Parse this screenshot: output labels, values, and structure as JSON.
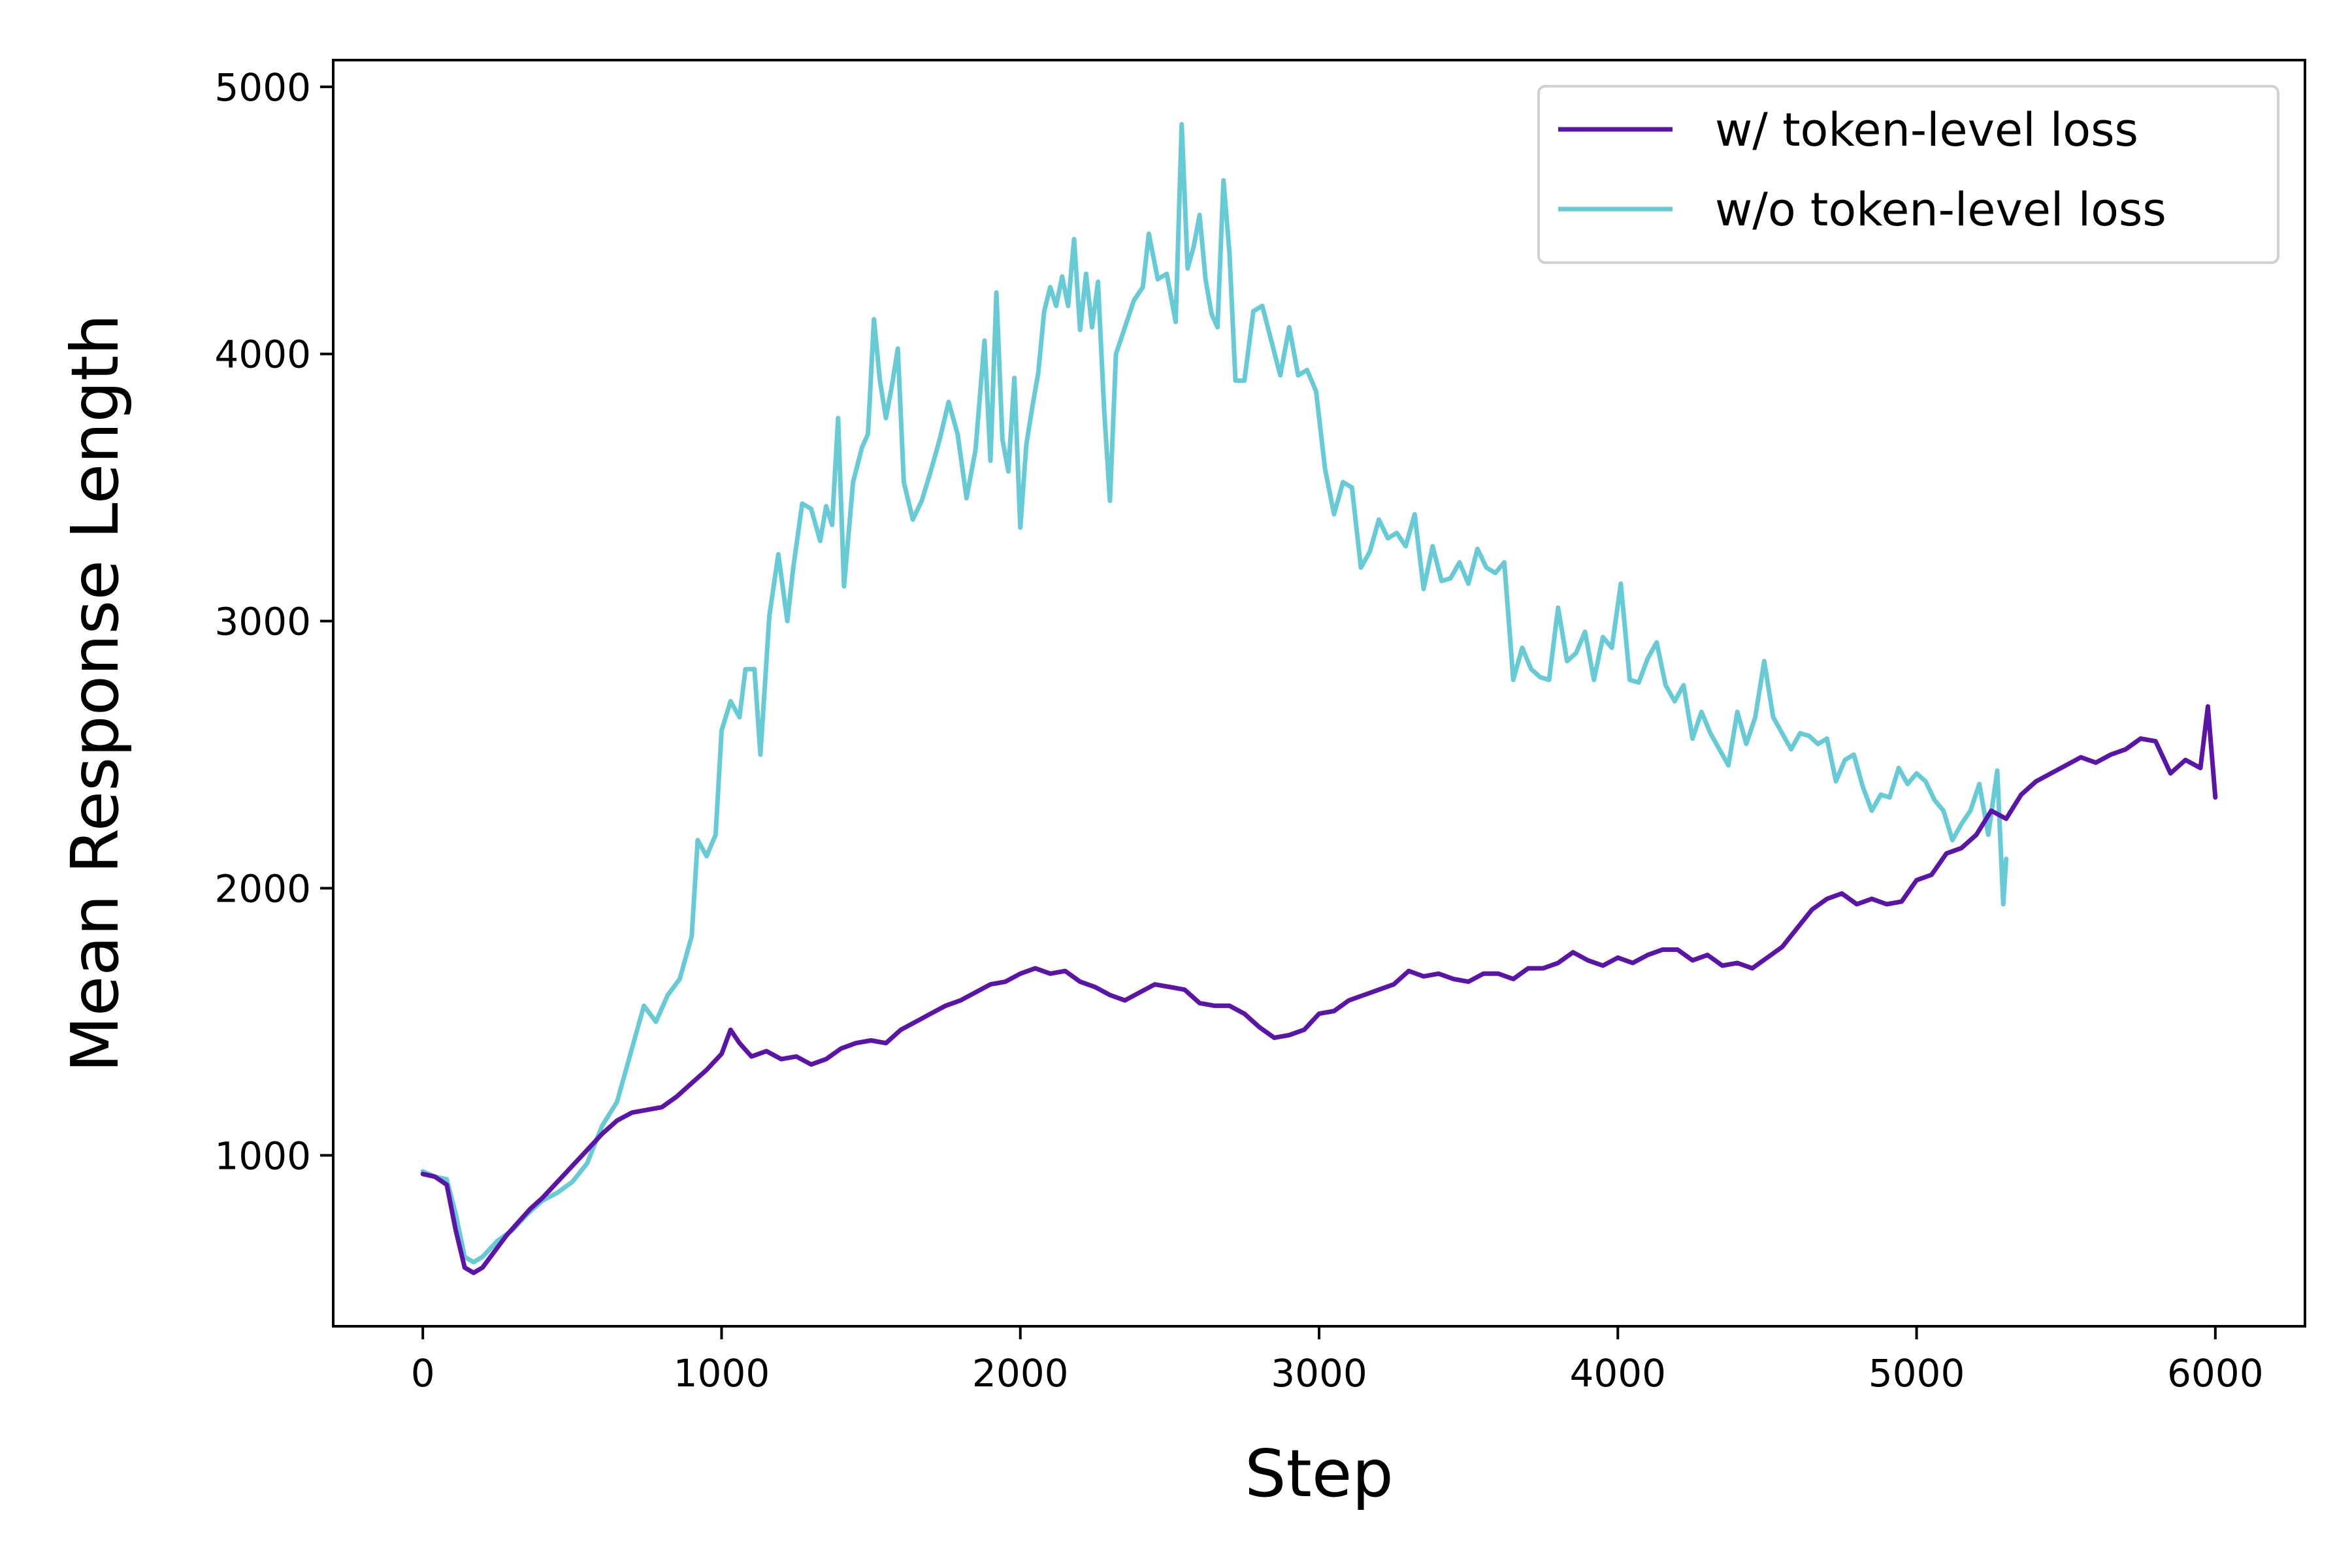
{
  "chart_data": {
    "type": "line",
    "title": "",
    "xlabel": "Step",
    "ylabel": "Mean Response Length",
    "xlim": [
      -300,
      6300
    ],
    "ylim": [
      360,
      5100
    ],
    "xticks": [
      0,
      1000,
      2000,
      3000,
      4000,
      5000,
      6000
    ],
    "yticks": [
      1000,
      2000,
      3000,
      4000,
      5000
    ],
    "grid": false,
    "legend_position": "upper-right",
    "series": [
      {
        "name": "w/ token-level loss",
        "color": "#5b14a8",
        "points": [
          [
            0,
            930
          ],
          [
            40,
            920
          ],
          [
            80,
            890
          ],
          [
            110,
            720
          ],
          [
            140,
            580
          ],
          [
            170,
            560
          ],
          [
            200,
            580
          ],
          [
            240,
            640
          ],
          [
            280,
            700
          ],
          [
            320,
            750
          ],
          [
            360,
            800
          ],
          [
            400,
            840
          ],
          [
            450,
            900
          ],
          [
            500,
            960
          ],
          [
            550,
            1020
          ],
          [
            600,
            1080
          ],
          [
            650,
            1130
          ],
          [
            700,
            1160
          ],
          [
            750,
            1170
          ],
          [
            800,
            1180
          ],
          [
            850,
            1220
          ],
          [
            900,
            1270
          ],
          [
            950,
            1320
          ],
          [
            1000,
            1380
          ],
          [
            1030,
            1470
          ],
          [
            1060,
            1420
          ],
          [
            1100,
            1370
          ],
          [
            1150,
            1390
          ],
          [
            1200,
            1360
          ],
          [
            1250,
            1370
          ],
          [
            1300,
            1340
          ],
          [
            1350,
            1360
          ],
          [
            1400,
            1400
          ],
          [
            1450,
            1420
          ],
          [
            1500,
            1430
          ],
          [
            1550,
            1420
          ],
          [
            1600,
            1470
          ],
          [
            1650,
            1500
          ],
          [
            1700,
            1530
          ],
          [
            1750,
            1560
          ],
          [
            1800,
            1580
          ],
          [
            1850,
            1610
          ],
          [
            1900,
            1640
          ],
          [
            1950,
            1650
          ],
          [
            2000,
            1680
          ],
          [
            2050,
            1700
          ],
          [
            2100,
            1680
          ],
          [
            2150,
            1690
          ],
          [
            2200,
            1650
          ],
          [
            2250,
            1630
          ],
          [
            2300,
            1600
          ],
          [
            2350,
            1580
          ],
          [
            2400,
            1610
          ],
          [
            2450,
            1640
          ],
          [
            2500,
            1630
          ],
          [
            2550,
            1620
          ],
          [
            2600,
            1570
          ],
          [
            2650,
            1560
          ],
          [
            2700,
            1560
          ],
          [
            2750,
            1530
          ],
          [
            2800,
            1480
          ],
          [
            2850,
            1440
          ],
          [
            2900,
            1450
          ],
          [
            2950,
            1470
          ],
          [
            3000,
            1530
          ],
          [
            3050,
            1540
          ],
          [
            3100,
            1580
          ],
          [
            3150,
            1600
          ],
          [
            3200,
            1620
          ],
          [
            3250,
            1640
          ],
          [
            3300,
            1690
          ],
          [
            3350,
            1670
          ],
          [
            3400,
            1680
          ],
          [
            3450,
            1660
          ],
          [
            3500,
            1650
          ],
          [
            3550,
            1680
          ],
          [
            3600,
            1680
          ],
          [
            3650,
            1660
          ],
          [
            3700,
            1700
          ],
          [
            3750,
            1700
          ],
          [
            3800,
            1720
          ],
          [
            3850,
            1760
          ],
          [
            3900,
            1730
          ],
          [
            3950,
            1710
          ],
          [
            4000,
            1740
          ],
          [
            4050,
            1720
          ],
          [
            4100,
            1750
          ],
          [
            4150,
            1770
          ],
          [
            4200,
            1770
          ],
          [
            4250,
            1730
          ],
          [
            4300,
            1750
          ],
          [
            4350,
            1710
          ],
          [
            4400,
            1720
          ],
          [
            4450,
            1700
          ],
          [
            4500,
            1740
          ],
          [
            4550,
            1780
          ],
          [
            4600,
            1850
          ],
          [
            4650,
            1920
          ],
          [
            4700,
            1960
          ],
          [
            4750,
            1980
          ],
          [
            4800,
            1940
          ],
          [
            4850,
            1960
          ],
          [
            4900,
            1940
          ],
          [
            4950,
            1950
          ],
          [
            5000,
            2030
          ],
          [
            5050,
            2050
          ],
          [
            5100,
            2130
          ],
          [
            5150,
            2150
          ],
          [
            5200,
            2200
          ],
          [
            5250,
            2290
          ],
          [
            5300,
            2260
          ],
          [
            5350,
            2350
          ],
          [
            5400,
            2400
          ],
          [
            5450,
            2430
          ],
          [
            5500,
            2460
          ],
          [
            5550,
            2490
          ],
          [
            5600,
            2470
          ],
          [
            5650,
            2500
          ],
          [
            5700,
            2520
          ],
          [
            5750,
            2560
          ],
          [
            5800,
            2550
          ],
          [
            5850,
            2430
          ],
          [
            5900,
            2480
          ],
          [
            5950,
            2450
          ],
          [
            5975,
            2680
          ],
          [
            6000,
            2340
          ]
        ]
      },
      {
        "name": "w/o token-level loss",
        "color": "#66cbd4",
        "points": [
          [
            0,
            940
          ],
          [
            40,
            920
          ],
          [
            80,
            910
          ],
          [
            110,
            780
          ],
          [
            140,
            620
          ],
          [
            170,
            600
          ],
          [
            200,
            620
          ],
          [
            250,
            680
          ],
          [
            300,
            720
          ],
          [
            350,
            780
          ],
          [
            400,
            830
          ],
          [
            450,
            860
          ],
          [
            500,
            900
          ],
          [
            550,
            970
          ],
          [
            600,
            1110
          ],
          [
            650,
            1200
          ],
          [
            700,
            1400
          ],
          [
            740,
            1560
          ],
          [
            780,
            1500
          ],
          [
            820,
            1600
          ],
          [
            860,
            1660
          ],
          [
            900,
            1820
          ],
          [
            920,
            2180
          ],
          [
            950,
            2120
          ],
          [
            980,
            2200
          ],
          [
            1000,
            2590
          ],
          [
            1030,
            2700
          ],
          [
            1060,
            2640
          ],
          [
            1080,
            2820
          ],
          [
            1110,
            2820
          ],
          [
            1130,
            2500
          ],
          [
            1160,
            3020
          ],
          [
            1190,
            3250
          ],
          [
            1220,
            3000
          ],
          [
            1240,
            3200
          ],
          [
            1270,
            3440
          ],
          [
            1300,
            3420
          ],
          [
            1330,
            3300
          ],
          [
            1350,
            3430
          ],
          [
            1370,
            3360
          ],
          [
            1390,
            3760
          ],
          [
            1410,
            3130
          ],
          [
            1440,
            3520
          ],
          [
            1470,
            3650
          ],
          [
            1490,
            3700
          ],
          [
            1510,
            4130
          ],
          [
            1530,
            3900
          ],
          [
            1550,
            3760
          ],
          [
            1570,
            3880
          ],
          [
            1590,
            4020
          ],
          [
            1610,
            3520
          ],
          [
            1640,
            3380
          ],
          [
            1670,
            3450
          ],
          [
            1700,
            3560
          ],
          [
            1730,
            3680
          ],
          [
            1760,
            3820
          ],
          [
            1790,
            3700
          ],
          [
            1820,
            3460
          ],
          [
            1850,
            3640
          ],
          [
            1880,
            4050
          ],
          [
            1900,
            3600
          ],
          [
            1920,
            4230
          ],
          [
            1940,
            3680
          ],
          [
            1960,
            3560
          ],
          [
            1980,
            3910
          ],
          [
            2000,
            3350
          ],
          [
            2020,
            3660
          ],
          [
            2040,
            3800
          ],
          [
            2060,
            3930
          ],
          [
            2080,
            4160
          ],
          [
            2100,
            4250
          ],
          [
            2120,
            4180
          ],
          [
            2140,
            4290
          ],
          [
            2160,
            4180
          ],
          [
            2180,
            4430
          ],
          [
            2200,
            4090
          ],
          [
            2220,
            4300
          ],
          [
            2240,
            4100
          ],
          [
            2260,
            4270
          ],
          [
            2280,
            3800
          ],
          [
            2300,
            3450
          ],
          [
            2320,
            4000
          ],
          [
            2350,
            4100
          ],
          [
            2380,
            4200
          ],
          [
            2410,
            4250
          ],
          [
            2430,
            4450
          ],
          [
            2460,
            4280
          ],
          [
            2490,
            4300
          ],
          [
            2520,
            4120
          ],
          [
            2540,
            4860
          ],
          [
            2560,
            4320
          ],
          [
            2580,
            4400
          ],
          [
            2600,
            4520
          ],
          [
            2620,
            4280
          ],
          [
            2640,
            4150
          ],
          [
            2660,
            4100
          ],
          [
            2680,
            4650
          ],
          [
            2700,
            4380
          ],
          [
            2720,
            3900
          ],
          [
            2750,
            3900
          ],
          [
            2780,
            4160
          ],
          [
            2810,
            4180
          ],
          [
            2840,
            4050
          ],
          [
            2870,
            3920
          ],
          [
            2900,
            4100
          ],
          [
            2930,
            3920
          ],
          [
            2960,
            3940
          ],
          [
            2990,
            3860
          ],
          [
            3020,
            3570
          ],
          [
            3050,
            3400
          ],
          [
            3080,
            3520
          ],
          [
            3110,
            3500
          ],
          [
            3140,
            3200
          ],
          [
            3170,
            3260
          ],
          [
            3200,
            3380
          ],
          [
            3230,
            3310
          ],
          [
            3260,
            3330
          ],
          [
            3290,
            3280
          ],
          [
            3320,
            3400
          ],
          [
            3350,
            3120
          ],
          [
            3380,
            3280
          ],
          [
            3410,
            3150
          ],
          [
            3440,
            3160
          ],
          [
            3470,
            3220
          ],
          [
            3500,
            3140
          ],
          [
            3530,
            3270
          ],
          [
            3560,
            3200
          ],
          [
            3590,
            3180
          ],
          [
            3620,
            3220
          ],
          [
            3650,
            2780
          ],
          [
            3680,
            2900
          ],
          [
            3710,
            2820
          ],
          [
            3740,
            2790
          ],
          [
            3770,
            2780
          ],
          [
            3800,
            3050
          ],
          [
            3830,
            2850
          ],
          [
            3860,
            2880
          ],
          [
            3890,
            2960
          ],
          [
            3920,
            2780
          ],
          [
            3950,
            2940
          ],
          [
            3980,
            2900
          ],
          [
            4010,
            3140
          ],
          [
            4040,
            2780
          ],
          [
            4070,
            2770
          ],
          [
            4100,
            2860
          ],
          [
            4130,
            2920
          ],
          [
            4160,
            2760
          ],
          [
            4190,
            2700
          ],
          [
            4220,
            2760
          ],
          [
            4250,
            2560
          ],
          [
            4280,
            2660
          ],
          [
            4310,
            2580
          ],
          [
            4340,
            2520
          ],
          [
            4370,
            2460
          ],
          [
            4400,
            2660
          ],
          [
            4430,
            2540
          ],
          [
            4460,
            2640
          ],
          [
            4490,
            2850
          ],
          [
            4520,
            2640
          ],
          [
            4550,
            2580
          ],
          [
            4580,
            2520
          ],
          [
            4610,
            2580
          ],
          [
            4640,
            2570
          ],
          [
            4670,
            2540
          ],
          [
            4700,
            2560
          ],
          [
            4730,
            2400
          ],
          [
            4760,
            2480
          ],
          [
            4790,
            2500
          ],
          [
            4820,
            2380
          ],
          [
            4850,
            2290
          ],
          [
            4880,
            2350
          ],
          [
            4910,
            2340
          ],
          [
            4940,
            2450
          ],
          [
            4970,
            2390
          ],
          [
            5000,
            2430
          ],
          [
            5030,
            2400
          ],
          [
            5060,
            2330
          ],
          [
            5090,
            2290
          ],
          [
            5120,
            2180
          ],
          [
            5150,
            2240
          ],
          [
            5180,
            2290
          ],
          [
            5210,
            2390
          ],
          [
            5240,
            2200
          ],
          [
            5270,
            2440
          ],
          [
            5290,
            1940
          ],
          [
            5300,
            2110
          ]
        ]
      }
    ]
  }
}
